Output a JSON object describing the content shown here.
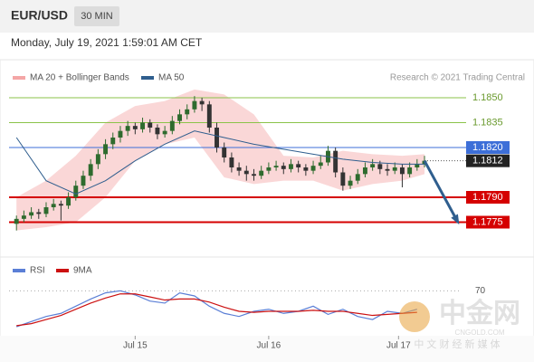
{
  "header": {
    "symbol": "EUR/USD",
    "timeframe": "30 MIN",
    "timestamp": "Monday, July 19, 2021 1:59:01 AM CET"
  },
  "chart_data": [
    {
      "type": "candlestick",
      "credit": "Research © 2021 Trading Central",
      "up_color": "#2e6b2e",
      "down_color": "#333333",
      "xlim": [
        -1,
        60
      ],
      "ylim": [
        1.1766,
        1.1868
      ],
      "xticks": [
        {
          "value": 16,
          "label": "Jul 15"
        },
        {
          "value": 34,
          "label": "Jul 16"
        },
        {
          "value": 51.5,
          "label": "Jul 17"
        }
      ],
      "candles": [
        [
          1.1774,
          1.1779,
          1.177,
          1.1777
        ],
        [
          1.1777,
          1.1782,
          1.1775,
          1.1779
        ],
        [
          1.1779,
          1.1784,
          1.1777,
          1.1781
        ],
        [
          1.1781,
          1.1783,
          1.1777,
          1.178
        ],
        [
          1.178,
          1.1787,
          1.1778,
          1.1784
        ],
        [
          1.1784,
          1.1789,
          1.1782,
          1.1786
        ],
        [
          1.1786,
          1.1788,
          1.1776,
          1.1785
        ],
        [
          1.1785,
          1.1793,
          1.1783,
          1.179
        ],
        [
          1.179,
          1.18,
          1.1788,
          1.1797
        ],
        [
          1.1797,
          1.1806,
          1.1795,
          1.1803
        ],
        [
          1.1803,
          1.1813,
          1.18,
          1.181
        ],
        [
          1.181,
          1.1819,
          1.1807,
          1.1816
        ],
        [
          1.1816,
          1.1825,
          1.1813,
          1.1822
        ],
        [
          1.1822,
          1.1829,
          1.1819,
          1.1826
        ],
        [
          1.1826,
          1.1833,
          1.1823,
          1.183
        ],
        [
          1.183,
          1.1836,
          1.1827,
          1.1833
        ],
        [
          1.1833,
          1.1835,
          1.1828,
          1.1831
        ],
        [
          1.1831,
          1.1838,
          1.1829,
          1.1835
        ],
        [
          1.1835,
          1.1837,
          1.1829,
          1.1832
        ],
        [
          1.1832,
          1.1834,
          1.1825,
          1.1828
        ],
        [
          1.1828,
          1.1833,
          1.1826,
          1.183
        ],
        [
          1.183,
          1.1839,
          1.1828,
          1.1836
        ],
        [
          1.1836,
          1.1843,
          1.1834,
          1.184
        ],
        [
          1.184,
          1.1846,
          1.1837,
          1.1843
        ],
        [
          1.1843,
          1.1851,
          1.1841,
          1.1848
        ],
        [
          1.1848,
          1.185,
          1.1842,
          1.1846
        ],
        [
          1.1846,
          1.1848,
          1.1829,
          1.1832
        ],
        [
          1.1832,
          1.1835,
          1.1817,
          1.182
        ],
        [
          1.182,
          1.1823,
          1.1811,
          1.1814
        ],
        [
          1.1814,
          1.1817,
          1.1805,
          1.1808
        ],
        [
          1.1808,
          1.1811,
          1.1803,
          1.1806
        ],
        [
          1.1806,
          1.1809,
          1.18,
          1.1804
        ],
        [
          1.1804,
          1.1807,
          1.18,
          1.1803
        ],
        [
          1.1803,
          1.1809,
          1.1801,
          1.1806
        ],
        [
          1.1806,
          1.1811,
          1.1804,
          1.1808
        ],
        [
          1.1808,
          1.1812,
          1.1806,
          1.1809
        ],
        [
          1.1809,
          1.1811,
          1.1804,
          1.1807
        ],
        [
          1.1807,
          1.1813,
          1.1805,
          1.181
        ],
        [
          1.181,
          1.1812,
          1.1805,
          1.1808
        ],
        [
          1.1808,
          1.181,
          1.1803,
          1.1806
        ],
        [
          1.1806,
          1.1812,
          1.1804,
          1.1809
        ],
        [
          1.1809,
          1.1815,
          1.1807,
          1.1811
        ],
        [
          1.1811,
          1.1821,
          1.1809,
          1.1818
        ],
        [
          1.1818,
          1.182,
          1.1802,
          1.1805
        ],
        [
          1.1805,
          1.1808,
          1.1794,
          1.1797
        ],
        [
          1.1797,
          1.1803,
          1.1795,
          1.18
        ],
        [
          1.18,
          1.1807,
          1.1798,
          1.1804
        ],
        [
          1.1804,
          1.1811,
          1.1802,
          1.1808
        ],
        [
          1.1808,
          1.1813,
          1.1806,
          1.181
        ],
        [
          1.181,
          1.1812,
          1.1804,
          1.1807
        ],
        [
          1.1807,
          1.181,
          1.1803,
          1.1806
        ],
        [
          1.1806,
          1.1811,
          1.1804,
          1.1808
        ],
        [
          1.1808,
          1.181,
          1.1796,
          1.1804
        ],
        [
          1.1804,
          1.1811,
          1.1802,
          1.1808
        ],
        [
          1.1808,
          1.1813,
          1.1806,
          1.181
        ],
        [
          1.181,
          1.1815,
          1.1808,
          1.1812
        ]
      ],
      "bands": {
        "name": "MA 20 + Bollinger Bands",
        "color": "#f4a6a6",
        "x": [
          0,
          4,
          8,
          12,
          16,
          20,
          24,
          28,
          32,
          36,
          40,
          44,
          48,
          52,
          55
        ],
        "upper": [
          1.179,
          1.18,
          1.1815,
          1.1835,
          1.1845,
          1.1848,
          1.1855,
          1.1852,
          1.184,
          1.1815,
          1.1814,
          1.1818,
          1.1816,
          1.1815,
          1.1816
        ],
        "lower": [
          1.177,
          1.1772,
          1.1775,
          1.179,
          1.1812,
          1.1822,
          1.1826,
          1.1802,
          1.1798,
          1.18,
          1.18,
          1.1794,
          1.1798,
          1.18,
          1.1804
        ]
      },
      "ma50": {
        "name": "MA 50",
        "color": "#2f5e8e",
        "x": [
          0,
          4,
          8,
          12,
          16,
          20,
          24,
          28,
          32,
          36,
          40,
          44,
          48,
          52,
          55
        ],
        "values": [
          1.1826,
          1.18,
          1.1792,
          1.18,
          1.1812,
          1.1822,
          1.183,
          1.1826,
          1.1822,
          1.1819,
          1.1816,
          1.1813,
          1.1811,
          1.181,
          1.181
        ]
      },
      "levels": [
        {
          "value": 1.185,
          "label": "1.1850",
          "color": "#8bc34a",
          "boxed": false
        },
        {
          "value": 1.1835,
          "label": "1.1835",
          "color": "#8bc34a",
          "boxed": false
        },
        {
          "value": 1.182,
          "label": "1.1820",
          "color": "#3d6fd8",
          "boxed": true
        },
        {
          "value": 1.179,
          "label": "1.1790",
          "color": "#d50000",
          "boxed": true
        },
        {
          "value": 1.1775,
          "label": "1.1775",
          "color": "#d50000",
          "boxed": true
        }
      ],
      "last_price": {
        "value": 1.1812,
        "label": "1.1812",
        "color": "#222222"
      },
      "forecast": {
        "color": "#2f5e8e",
        "x": [
          55,
          59.5
        ],
        "values": [
          1.1812,
          1.1775
        ]
      }
    },
    {
      "type": "line",
      "ylim": [
        20,
        80
      ],
      "yticks": [
        70
      ],
      "series": [
        {
          "name": "RSI",
          "color": "#5b7fd6",
          "x": [
            0,
            2,
            4,
            6,
            8,
            10,
            12,
            14,
            16,
            18,
            20,
            22,
            24,
            26,
            28,
            30,
            32,
            34,
            36,
            38,
            40,
            42,
            44,
            46,
            48,
            50,
            52,
            54
          ],
          "values": [
            35,
            40,
            45,
            48,
            55,
            62,
            68,
            70,
            66,
            60,
            58,
            68,
            65,
            55,
            48,
            45,
            50,
            52,
            48,
            50,
            55,
            47,
            52,
            45,
            42,
            50,
            48,
            52
          ]
        },
        {
          "name": "9MA",
          "color": "#cc1111",
          "x": [
            0,
            2,
            4,
            6,
            8,
            10,
            12,
            14,
            16,
            18,
            20,
            22,
            24,
            26,
            28,
            30,
            32,
            34,
            36,
            38,
            40,
            42,
            44,
            46,
            48,
            50,
            52,
            54
          ],
          "values": [
            36,
            38,
            42,
            46,
            52,
            58,
            63,
            67,
            67,
            64,
            61,
            62,
            62,
            59,
            54,
            50,
            49,
            50,
            50,
            50,
            51,
            50,
            50,
            48,
            46,
            47,
            48,
            49
          ]
        }
      ]
    }
  ],
  "watermark": {
    "brand": "中金网",
    "site": "CNGOLD.COM",
    "slogan": "中 文 财 经 新 媒 体"
  }
}
